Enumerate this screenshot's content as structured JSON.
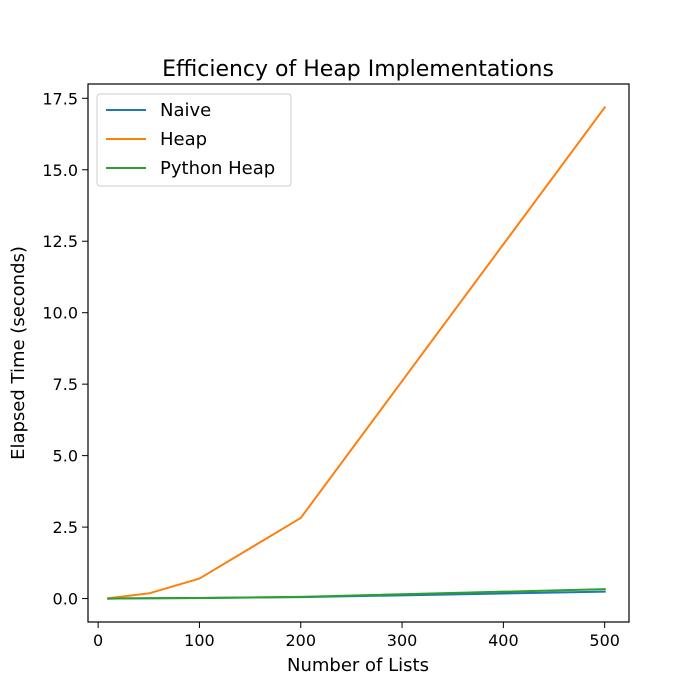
{
  "chart_data": {
    "type": "line",
    "title": "Efficiency of Heap Implementations",
    "xlabel": "Number of Lists",
    "ylabel": "Elapsed Time (seconds)",
    "xlim": [
      -10,
      524
    ],
    "ylim": [
      -0.82,
      18.0
    ],
    "xticks": [
      0,
      100,
      200,
      300,
      400,
      500
    ],
    "yticks": [
      0.0,
      2.5,
      5.0,
      7.5,
      10.0,
      12.5,
      15.0,
      17.5
    ],
    "xtick_labels": [
      "0",
      "100",
      "200",
      "300",
      "400",
      "500"
    ],
    "ytick_labels": [
      "0.0",
      "2.5",
      "5.0",
      "7.5",
      "10.0",
      "12.5",
      "15.0",
      "17.5"
    ],
    "x": [
      10,
      50,
      100,
      200,
      500
    ],
    "series": [
      {
        "name": "Naive",
        "color": "#1f77b4",
        "values": [
          0.0,
          0.01,
          0.02,
          0.05,
          0.24
        ]
      },
      {
        "name": "Heap",
        "color": "#ff7f0e",
        "values": [
          0.01,
          0.18,
          0.7,
          2.82,
          17.18
        ]
      },
      {
        "name": "Python Heap",
        "color": "#2ca02c",
        "values": [
          0.0,
          0.01,
          0.02,
          0.06,
          0.33
        ]
      }
    ],
    "legend": "top-left",
    "grid": false
  }
}
